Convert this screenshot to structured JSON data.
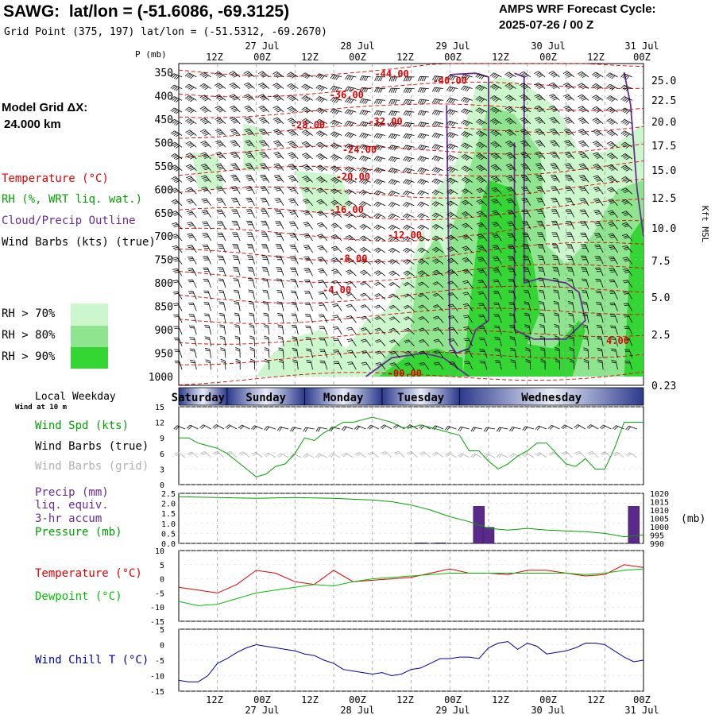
{
  "header": {
    "station": "SAWG:",
    "latlon": "lat/lon = (-51.6086, -69.3125)",
    "gridpoint": "Grid Point (375, 197) lat/lon = (-51.5312, -69.2670)",
    "cycle_title": "AMPS WRF Forecast Cycle:",
    "cycle_value": "2025-07-26 / 00  Z",
    "grid_label": "Model Grid ΔX:",
    "grid_value": "24.000 km"
  },
  "time_axis": {
    "hour_labels": [
      "12Z",
      "00Z",
      "12Z",
      "00Z",
      "12Z",
      "00Z",
      "12Z",
      "00Z",
      "12Z",
      "00Z"
    ],
    "date_labels": [
      "27 Jul",
      "28 Jul",
      "29 Jul",
      "30 Jul",
      "31 Jul"
    ]
  },
  "legends": {
    "sounding": [
      {
        "text": "Temperature (°C)",
        "color": "#e00000"
      },
      {
        "text": "RH (%, WRT liq. wat.)",
        "color": "#00a000"
      },
      {
        "text": "Cloud/Precip Outline",
        "color": "#6a2c91"
      },
      {
        "text": "Wind Barbs (kts) (true)",
        "color": "#000000"
      }
    ],
    "rh_bins": [
      {
        "text": "RH > 70%",
        "color": "#ccf7cc"
      },
      {
        "text": "RH > 80%",
        "color": "#8fe58f"
      },
      {
        "text": "RH > 90%",
        "color": "#33d633"
      }
    ],
    "wind": {
      "weekday_title": "Local Weekday",
      "wind_at": "Wind at 10 m",
      "items": [
        {
          "text": "Wind Spd (kts)",
          "color": "#00a000"
        },
        {
          "text": "Wind Barbs (true)",
          "color": "#000000"
        },
        {
          "text": "Wind Barbs (grid)",
          "color": "#b0b0b0"
        }
      ]
    },
    "precip": [
      {
        "text": "Precip (mm)",
        "color": "#6a2c91"
      },
      {
        "text": "liq. equiv.",
        "color": "#6a2c91"
      },
      {
        "text": "3-hr accum",
        "color": "#6a2c91"
      },
      {
        "text": "Pressure (mb)",
        "color": "#00a000"
      }
    ],
    "temp": [
      {
        "text": "Temperature (°C)",
        "color": "#e00000"
      },
      {
        "text": "Dewpoint (°C)",
        "color": "#00c000"
      }
    ],
    "windchill": [
      {
        "text": "Wind Chill T (°C)",
        "color": "#0000a0"
      }
    ]
  },
  "weekdays": [
    "Saturday",
    "Sunday",
    "Monday",
    "Tuesday",
    "Wednesday"
  ],
  "colors": {
    "temp": "#e00000",
    "dew": "#00c000",
    "rh70": "#ccf7cc",
    "rh80": "#8fe58f",
    "rh90": "#33d633",
    "cloud": "#6a2c91",
    "precip": "#5a2a8a",
    "pressure": "#00a000",
    "windchill": "#0000a0",
    "wspd": "#00a000"
  },
  "chart_data": [
    {
      "type": "heatmap",
      "name": "time-height cross section",
      "y_left_label": "P (mb)",
      "y_left_ticks": [
        350,
        400,
        450,
        500,
        550,
        600,
        650,
        700,
        750,
        800,
        850,
        900,
        950,
        1000
      ],
      "y_right_label": "Kft MSL",
      "y_right_ticks": [
        "25.0",
        "22.5",
        "20.0",
        "17.5",
        "15.0",
        "12.5",
        "10.0",
        "7.5",
        "5.0",
        "2.5",
        "0.23"
      ],
      "isotherm_labels": [
        {
          "text": "-44.00",
          "t_h": 66,
          "p": 360
        },
        {
          "text": "-40.00",
          "t_h": 84,
          "p": 375
        },
        {
          "text": "-36.00",
          "t_h": 52,
          "p": 405
        },
        {
          "text": "-32.00",
          "t_h": 64,
          "p": 462
        },
        {
          "text": "-28.00",
          "t_h": 40,
          "p": 470
        },
        {
          "text": "-24.00",
          "t_h": 56,
          "p": 522
        },
        {
          "text": "-20.00",
          "t_h": 54,
          "p": 580
        },
        {
          "text": "-16.00",
          "t_h": 52,
          "p": 650
        },
        {
          "text": "-12.00",
          "t_h": 70,
          "p": 705
        },
        {
          "text": "-8.00",
          "t_h": 54,
          "p": 755
        },
        {
          "text": "-4.00",
          "t_h": 49,
          "p": 822
        },
        {
          "text": "-00.00",
          "t_h": 70,
          "p": 1000
        },
        {
          "text": "4.00",
          "t_h": 136,
          "p": 930
        }
      ]
    },
    {
      "type": "line",
      "name": "wind speed",
      "ylim": [
        0,
        15
      ],
      "yticks": [
        0,
        3,
        6,
        9,
        12,
        15
      ],
      "t_hours": [
        0,
        3,
        6,
        9,
        12,
        15,
        18,
        21,
        24,
        27,
        30,
        33,
        36,
        39,
        42,
        45,
        48,
        51,
        54,
        57,
        60,
        63,
        66,
        69,
        72,
        75,
        78,
        81,
        84,
        87,
        90,
        93,
        96,
        99,
        102,
        105,
        108,
        111,
        114,
        117,
        120,
        123,
        126,
        129,
        132,
        135,
        138,
        141,
        144
      ],
      "values": [
        9,
        9,
        8,
        7.5,
        7,
        6,
        4.5,
        3,
        1.5,
        2,
        3.5,
        4,
        6,
        9,
        8.5,
        10,
        11,
        12,
        12,
        12.5,
        13,
        12.5,
        12,
        11,
        11,
        11.5,
        11,
        10.5,
        10,
        9.5,
        6.5,
        6.5,
        4.5,
        3,
        4,
        5.5,
        6.5,
        8,
        8,
        6,
        4,
        3.5,
        5,
        3,
        3,
        7,
        12,
        12,
        12
      ]
    },
    {
      "type": "bar",
      "name": "precipitation 3-hr accum",
      "ylim": [
        0,
        2.5
      ],
      "yticks": [
        "0.0",
        "0.5",
        "1.0",
        "1.5",
        "2.0",
        "2.5"
      ],
      "bars": [
        {
          "t": 75,
          "v": 0.03
        },
        {
          "t": 81,
          "v": 0.03
        },
        {
          "t": 93,
          "v": 1.85
        },
        {
          "t": 96,
          "v": 0.8
        },
        {
          "t": 141,
          "v": 1.85
        }
      ]
    },
    {
      "type": "line",
      "name": "surface pressure",
      "ylim": [
        990,
        1020
      ],
      "yticks": [
        990,
        995,
        1000,
        1005,
        1010,
        1015,
        1020
      ],
      "t_hours": [
        0,
        12,
        24,
        36,
        48,
        54,
        60,
        66,
        72,
        78,
        84,
        90,
        96,
        102,
        108,
        114,
        120,
        126,
        132,
        138,
        144
      ],
      "values": [
        1018,
        1017.5,
        1017,
        1017.5,
        1017,
        1016.5,
        1016,
        1015,
        1013,
        1010,
        1006,
        1003,
        999,
        998,
        999,
        998,
        997.5,
        997,
        996,
        994,
        995
      ]
    },
    {
      "type": "line",
      "name": "temperature and dewpoint",
      "ylim": [
        -15,
        10
      ],
      "yticks": [
        -15,
        -10,
        -5,
        0,
        5,
        10
      ],
      "series": [
        {
          "name": "Temperature",
          "t_hours": [
            0,
            6,
            12,
            18,
            24,
            30,
            36,
            42,
            48,
            54,
            60,
            66,
            72,
            78,
            84,
            90,
            96,
            102,
            108,
            114,
            120,
            126,
            132,
            138,
            144
          ],
          "values": [
            -3,
            -4,
            -5,
            -2,
            3,
            2,
            -1,
            -2,
            3,
            -1,
            -0.5,
            0,
            0.5,
            2,
            3.5,
            2,
            2,
            1.5,
            3,
            3,
            2,
            1,
            1.5,
            5,
            4
          ]
        },
        {
          "name": "Dewpoint",
          "t_hours": [
            0,
            6,
            12,
            18,
            24,
            30,
            36,
            42,
            48,
            54,
            60,
            66,
            72,
            78,
            84,
            90,
            96,
            102,
            108,
            114,
            120,
            126,
            132,
            138,
            144
          ],
          "values": [
            -8,
            -9.5,
            -9,
            -7,
            -5,
            -4,
            -3,
            -2,
            -2.5,
            -1,
            0,
            0.5,
            1,
            1.5,
            2,
            2,
            2,
            2,
            2,
            2,
            2,
            1.5,
            2,
            3,
            3.5
          ]
        }
      ]
    },
    {
      "type": "line",
      "name": "wind chill",
      "ylim": [
        -15,
        5
      ],
      "yticks": [
        -15,
        -10,
        -5,
        0,
        5
      ],
      "t_hours": [
        0,
        3,
        6,
        9,
        12,
        15,
        18,
        21,
        24,
        27,
        30,
        33,
        36,
        39,
        42,
        45,
        48,
        51,
        54,
        57,
        60,
        63,
        66,
        69,
        72,
        75,
        78,
        81,
        84,
        87,
        90,
        93,
        96,
        99,
        102,
        105,
        108,
        111,
        114,
        117,
        120,
        123,
        126,
        129,
        132,
        135,
        138,
        141,
        144
      ],
      "values": [
        -11.5,
        -12,
        -12,
        -10,
        -6,
        -4.5,
        -2.5,
        -1,
        0,
        -0.5,
        -1,
        -1.5,
        -2,
        -3,
        -3.5,
        -5,
        -6,
        -8,
        -8.5,
        -9,
        -9.5,
        -9,
        -10,
        -9.5,
        -8,
        -7.5,
        -6,
        -4.5,
        -4.5,
        -4,
        -4,
        -4.5,
        -1,
        0.5,
        1,
        -1.5,
        0.5,
        -0.5,
        -3,
        -2.5,
        -2,
        -1,
        0.5,
        0.5,
        0,
        -2,
        -4,
        -5.5,
        -5
      ]
    }
  ]
}
